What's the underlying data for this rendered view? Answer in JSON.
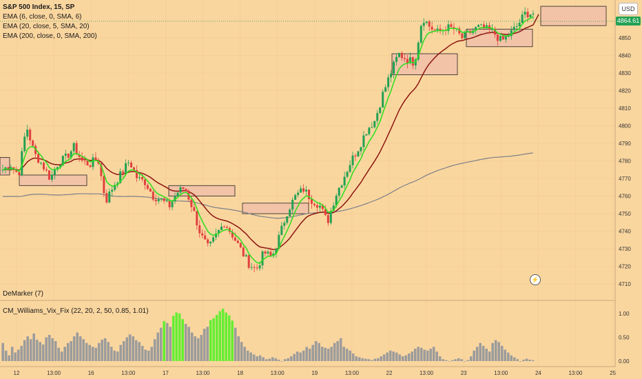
{
  "legend": {
    "title": "S&P 500 Index, 15, SP",
    "ema6": "EMA (6, close, 0, SMA, 6)",
    "ema20": "EMA (20, close, 5, SMA, 20)",
    "ema200": "EMA (200, close, 0, SMA, 200)"
  },
  "currency_label": "USD",
  "last_price_label": "4864.61",
  "indicator_labels": {
    "demarker": "DeMarker (7)",
    "vix_fix": "CM_Williams_Vix_Fix (22, 20, 2, 50, 0.85, 1.01)"
  },
  "colors": {
    "background": "#fad69f",
    "up_candle": "#21a153",
    "down_candle": "#e0413e",
    "ema6": "#33dd22",
    "ema20": "#8b1410",
    "ema200": "#7b7f88",
    "vix_normal": "#9c9c9c",
    "vix_high": "#66ee33",
    "zone_fill": "#f2c3a6",
    "zone_stroke": "#222222"
  },
  "chart_data": {
    "type": "candlestick",
    "title": "S&P 500 Index, 15, SP",
    "price_axis": {
      "ylim": [
        4703,
        4870
      ],
      "ticks": [
        4710,
        4720,
        4730,
        4740,
        4750,
        4760,
        4770,
        4780,
        4790,
        4800,
        4810,
        4820,
        4830,
        4840,
        4850,
        4860
      ],
      "last_price": 4864.61
    },
    "time_axis": {
      "labels": [
        "12",
        "13:00",
        "16",
        "13:00",
        "17",
        "13:00",
        "18",
        "13:00",
        "19",
        "13:00",
        "22",
        "13:00",
        "23",
        "13:00",
        "24",
        "13:00",
        "25"
      ]
    },
    "price_path": [
      4775,
      4778,
      4772,
      4800,
      4784,
      4778,
      4770,
      4779,
      4782,
      4788,
      4780,
      4778,
      4782,
      4757,
      4766,
      4773,
      4780,
      4770,
      4768,
      4760,
      4758,
      4754,
      4762,
      4765,
      4753,
      4738,
      4730,
      4738,
      4745,
      4738,
      4730,
      4722,
      4718,
      4728,
      4725,
      4738,
      4752,
      4760,
      4764,
      4758,
      4755,
      4745,
      4760,
      4770,
      4780,
      4788,
      4798,
      4803,
      4818,
      4830,
      4841,
      4838,
      4836,
      4862,
      4856,
      4853,
      4856,
      4855,
      4850,
      4853,
      4856,
      4855,
      4853,
      4848,
      4852,
      4857,
      4864,
      4864
    ],
    "zones": [
      {
        "low": 4766,
        "high": 4772
      },
      {
        "low": 4760,
        "high": 4766
      },
      {
        "low": 4750,
        "high": 4756
      },
      {
        "low": 4829,
        "high": 4841
      },
      {
        "low": 4845,
        "high": 4855
      },
      {
        "low": 4857,
        "high": 4868
      }
    ],
    "vix_axis": {
      "ylim": [
        0,
        1.1
      ],
      "ticks": [
        0.0,
        0.5,
        1.0
      ],
      "tick_labels": [
        "0.00",
        "0.50",
        "1.00"
      ]
    },
    "vix_fix": [
      {
        "values": [
          0.38,
          0.22,
          0.12,
          0.3,
          0.18,
          0.24,
          0.32,
          0.44,
          0.52,
          0.46,
          0.58,
          0.45,
          0.4,
          0.35,
          0.5,
          0.55,
          0.48,
          0.42,
          0.28,
          0.2,
          0.3,
          0.38,
          0.42,
          0.52,
          0.6,
          0.52,
          0.46,
          0.38,
          0.34,
          0.3,
          0.28,
          0.38,
          0.45,
          0.48,
          0.4,
          0.3,
          0.22,
          0.2,
          0.34,
          0.42,
          0.5,
          0.56,
          0.52,
          0.44,
          0.4,
          0.32,
          0.24,
          0.22,
          0.3,
          0.46,
          0.6,
          0.7,
          0.84,
          0.8,
          0.72,
          0.95,
          1.02,
          1.0,
          0.88,
          0.78,
          0.72,
          0.6,
          0.52,
          0.48,
          0.55,
          0.68,
          0.72,
          0.86,
          0.9,
          0.97,
          1.05,
          1.1,
          1.02,
          0.96,
          0.85,
          0.7,
          0.52,
          0.4,
          0.3,
          0.22,
          0.18,
          0.14,
          0.1,
          0.12,
          0.08,
          0.04,
          0.05,
          0.08,
          0.06,
          0.03,
          0.0,
          0.04,
          0.06,
          0.1,
          0.15,
          0.2,
          0.18,
          0.22,
          0.3,
          0.26,
          0.34,
          0.42,
          0.38,
          0.3,
          0.28,
          0.26,
          0.3,
          0.38,
          0.42,
          0.48,
          0.3,
          0.26,
          0.22,
          0.16,
          0.1,
          0.08,
          0.06,
          0.05,
          0.04,
          0.02,
          0.05,
          0.06,
          0.1,
          0.14,
          0.18,
          0.22,
          0.2,
          0.18,
          0.14,
          0.1,
          0.12,
          0.16,
          0.2,
          0.26,
          0.3,
          0.28,
          0.24,
          0.22,
          0.26,
          0.3,
          0.2,
          0.1,
          0.04,
          0.02,
          0.0,
          0.02,
          0.04,
          0.06,
          0.04,
          0.0,
          0.02,
          0.1,
          0.22,
          0.3,
          0.38,
          0.32,
          0.26,
          0.2,
          0.38,
          0.44,
          0.4,
          0.32,
          0.24,
          0.18,
          0.12,
          0.08,
          0.04,
          0.0,
          0.03,
          0.05,
          0.03,
          0.02
        ]
      }
    ]
  }
}
